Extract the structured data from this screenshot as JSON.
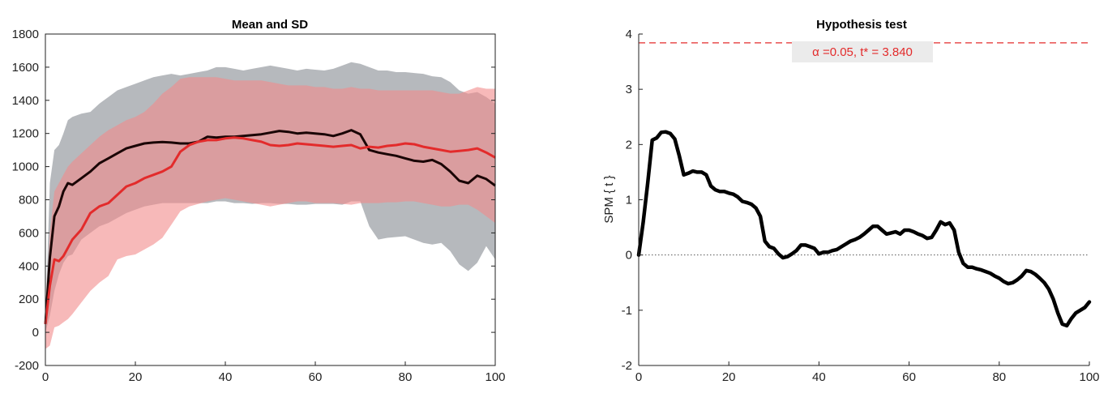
{
  "chart_data": [
    {
      "type": "line",
      "title": "Mean and SD",
      "xlabel": "",
      "ylabel": "",
      "xlim": [
        0,
        100
      ],
      "ylim": [
        -200,
        1800
      ],
      "xticks": [
        "0",
        "20",
        "40",
        "60",
        "80",
        "100"
      ],
      "yticks": [
        "-200",
        "0",
        "200",
        "400",
        "600",
        "800",
        "1000",
        "1200",
        "1400",
        "1600",
        "1800"
      ],
      "grid": false,
      "x": [
        0,
        1,
        2,
        3,
        4,
        5,
        6,
        8,
        10,
        12,
        14,
        16,
        18,
        20,
        22,
        24,
        26,
        28,
        30,
        32,
        34,
        36,
        38,
        40,
        42,
        44,
        46,
        48,
        50,
        52,
        54,
        56,
        58,
        60,
        62,
        64,
        66,
        68,
        70,
        72,
        74,
        76,
        78,
        80,
        82,
        84,
        86,
        88,
        90,
        92,
        94,
        96,
        98,
        100
      ],
      "series": [
        {
          "color": "#1a0505",
          "mean": [
            50,
            450,
            700,
            760,
            850,
            900,
            890,
            930,
            970,
            1020,
            1050,
            1080,
            1110,
            1125,
            1140,
            1145,
            1148,
            1145,
            1140,
            1140,
            1150,
            1180,
            1175,
            1180,
            1180,
            1185,
            1190,
            1195,
            1205,
            1215,
            1210,
            1200,
            1205,
            1200,
            1195,
            1185,
            1200,
            1220,
            1195,
            1100,
            1085,
            1075,
            1065,
            1050,
            1035,
            1030,
            1040,
            1015,
            970,
            915,
            900,
            945,
            925,
            885
          ],
          "lower": [
            0,
            100,
            250,
            350,
            420,
            460,
            470,
            560,
            600,
            640,
            660,
            690,
            720,
            740,
            760,
            770,
            780,
            780,
            780,
            780,
            780,
            780,
            790,
            790,
            780,
            780,
            775,
            780,
            780,
            775,
            775,
            770,
            770,
            775,
            775,
            775,
            770,
            790,
            790,
            640,
            560,
            570,
            575,
            580,
            560,
            540,
            530,
            540,
            490,
            410,
            370,
            420,
            520,
            440
          ],
          "upper": [
            60,
            900,
            1100,
            1130,
            1200,
            1280,
            1300,
            1320,
            1330,
            1380,
            1420,
            1460,
            1480,
            1500,
            1520,
            1540,
            1550,
            1560,
            1550,
            1560,
            1570,
            1580,
            1600,
            1600,
            1590,
            1580,
            1590,
            1600,
            1610,
            1600,
            1590,
            1580,
            1590,
            1585,
            1580,
            1590,
            1610,
            1630,
            1620,
            1600,
            1580,
            1580,
            1570,
            1570,
            1565,
            1560,
            1545,
            1540,
            1510,
            1460,
            1440,
            1450,
            1420,
            1380
          ]
        },
        {
          "color": "#e32b2b",
          "mean": [
            50,
            280,
            440,
            430,
            460,
            510,
            560,
            620,
            720,
            760,
            780,
            830,
            880,
            900,
            930,
            950,
            970,
            1000,
            1090,
            1130,
            1150,
            1160,
            1160,
            1170,
            1175,
            1170,
            1160,
            1150,
            1130,
            1125,
            1130,
            1140,
            1135,
            1130,
            1125,
            1120,
            1125,
            1130,
            1110,
            1120,
            1115,
            1125,
            1130,
            1140,
            1135,
            1120,
            1110,
            1100,
            1090,
            1095,
            1100,
            1110,
            1085,
            1055
          ],
          "lower": [
            -100,
            -80,
            30,
            40,
            60,
            80,
            110,
            180,
            250,
            300,
            340,
            440,
            460,
            470,
            500,
            530,
            570,
            650,
            730,
            760,
            775,
            790,
            800,
            810,
            800,
            790,
            780,
            770,
            760,
            770,
            780,
            790,
            790,
            780,
            780,
            780,
            775,
            770,
            780,
            780,
            780,
            785,
            785,
            790,
            790,
            780,
            770,
            760,
            760,
            770,
            770,
            740,
            700,
            660
          ],
          "upper": [
            60,
            600,
            850,
            900,
            950,
            1000,
            1030,
            1080,
            1130,
            1180,
            1220,
            1250,
            1280,
            1300,
            1330,
            1380,
            1440,
            1480,
            1530,
            1540,
            1540,
            1540,
            1540,
            1530,
            1520,
            1520,
            1520,
            1520,
            1510,
            1500,
            1490,
            1490,
            1490,
            1480,
            1480,
            1470,
            1470,
            1480,
            1470,
            1470,
            1460,
            1460,
            1460,
            1460,
            1460,
            1460,
            1460,
            1450,
            1440,
            1440,
            1460,
            1480,
            1470,
            1470
          ]
        }
      ]
    },
    {
      "type": "line",
      "title": "Hypothesis test",
      "xlabel": "",
      "ylabel": "SPM { t }",
      "xlim": [
        0,
        100
      ],
      "ylim": [
        -2,
        4
      ],
      "xticks": [
        "0",
        "20",
        "40",
        "60",
        "80",
        "100"
      ],
      "yticks": [
        "-2",
        "-1",
        "0",
        "1",
        "2",
        "3",
        "4"
      ],
      "grid": false,
      "threshold": 3.84,
      "threshold_label": "α  =0.05,     t* = 3.840",
      "threshold_color": "#e32b2b",
      "zero_line": 0,
      "series": [
        {
          "color": "#000000",
          "x": [
            0,
            1,
            2,
            3,
            4,
            5,
            6,
            7,
            8,
            9,
            10,
            11,
            12,
            13,
            14,
            15,
            16,
            17,
            18,
            19,
            20,
            21,
            22,
            23,
            24,
            25,
            26,
            27,
            28,
            29,
            30,
            31,
            32,
            33,
            34,
            35,
            36,
            37,
            38,
            39,
            40,
            41,
            42,
            43,
            44,
            45,
            46,
            47,
            48,
            49,
            50,
            51,
            52,
            53,
            54,
            55,
            56,
            57,
            58,
            59,
            60,
            61,
            62,
            63,
            64,
            65,
            66,
            67,
            68,
            69,
            70,
            71,
            72,
            73,
            74,
            75,
            76,
            77,
            78,
            79,
            80,
            81,
            82,
            83,
            84,
            85,
            86,
            87,
            88,
            89,
            90,
            91,
            92,
            93,
            94,
            95,
            96,
            97,
            98,
            99,
            100
          ],
          "y": [
            0,
            0.6,
            1.3,
            2.08,
            2.12,
            2.22,
            2.23,
            2.2,
            2.1,
            1.8,
            1.45,
            1.48,
            1.52,
            1.5,
            1.5,
            1.45,
            1.25,
            1.18,
            1.15,
            1.15,
            1.12,
            1.1,
            1.05,
            0.97,
            0.95,
            0.92,
            0.85,
            0.7,
            0.25,
            0.15,
            0.12,
            0.02,
            -0.05,
            -0.03,
            0.02,
            0.08,
            0.18,
            0.18,
            0.15,
            0.12,
            0.02,
            0.05,
            0.05,
            0.08,
            0.1,
            0.15,
            0.2,
            0.25,
            0.28,
            0.32,
            0.38,
            0.45,
            0.52,
            0.52,
            0.45,
            0.38,
            0.4,
            0.42,
            0.38,
            0.45,
            0.45,
            0.42,
            0.38,
            0.35,
            0.3,
            0.32,
            0.45,
            0.6,
            0.55,
            0.58,
            0.45,
            0.05,
            -0.15,
            -0.22,
            -0.22,
            -0.25,
            -0.27,
            -0.3,
            -0.33,
            -0.38,
            -0.42,
            -0.48,
            -0.52,
            -0.5,
            -0.45,
            -0.38,
            -0.28,
            -0.3,
            -0.35,
            -0.42,
            -0.5,
            -0.62,
            -0.8,
            -1.05,
            -1.25,
            -1.28,
            -1.15,
            -1.05,
            -1.0,
            -0.95,
            -0.85
          ]
        }
      ]
    }
  ]
}
